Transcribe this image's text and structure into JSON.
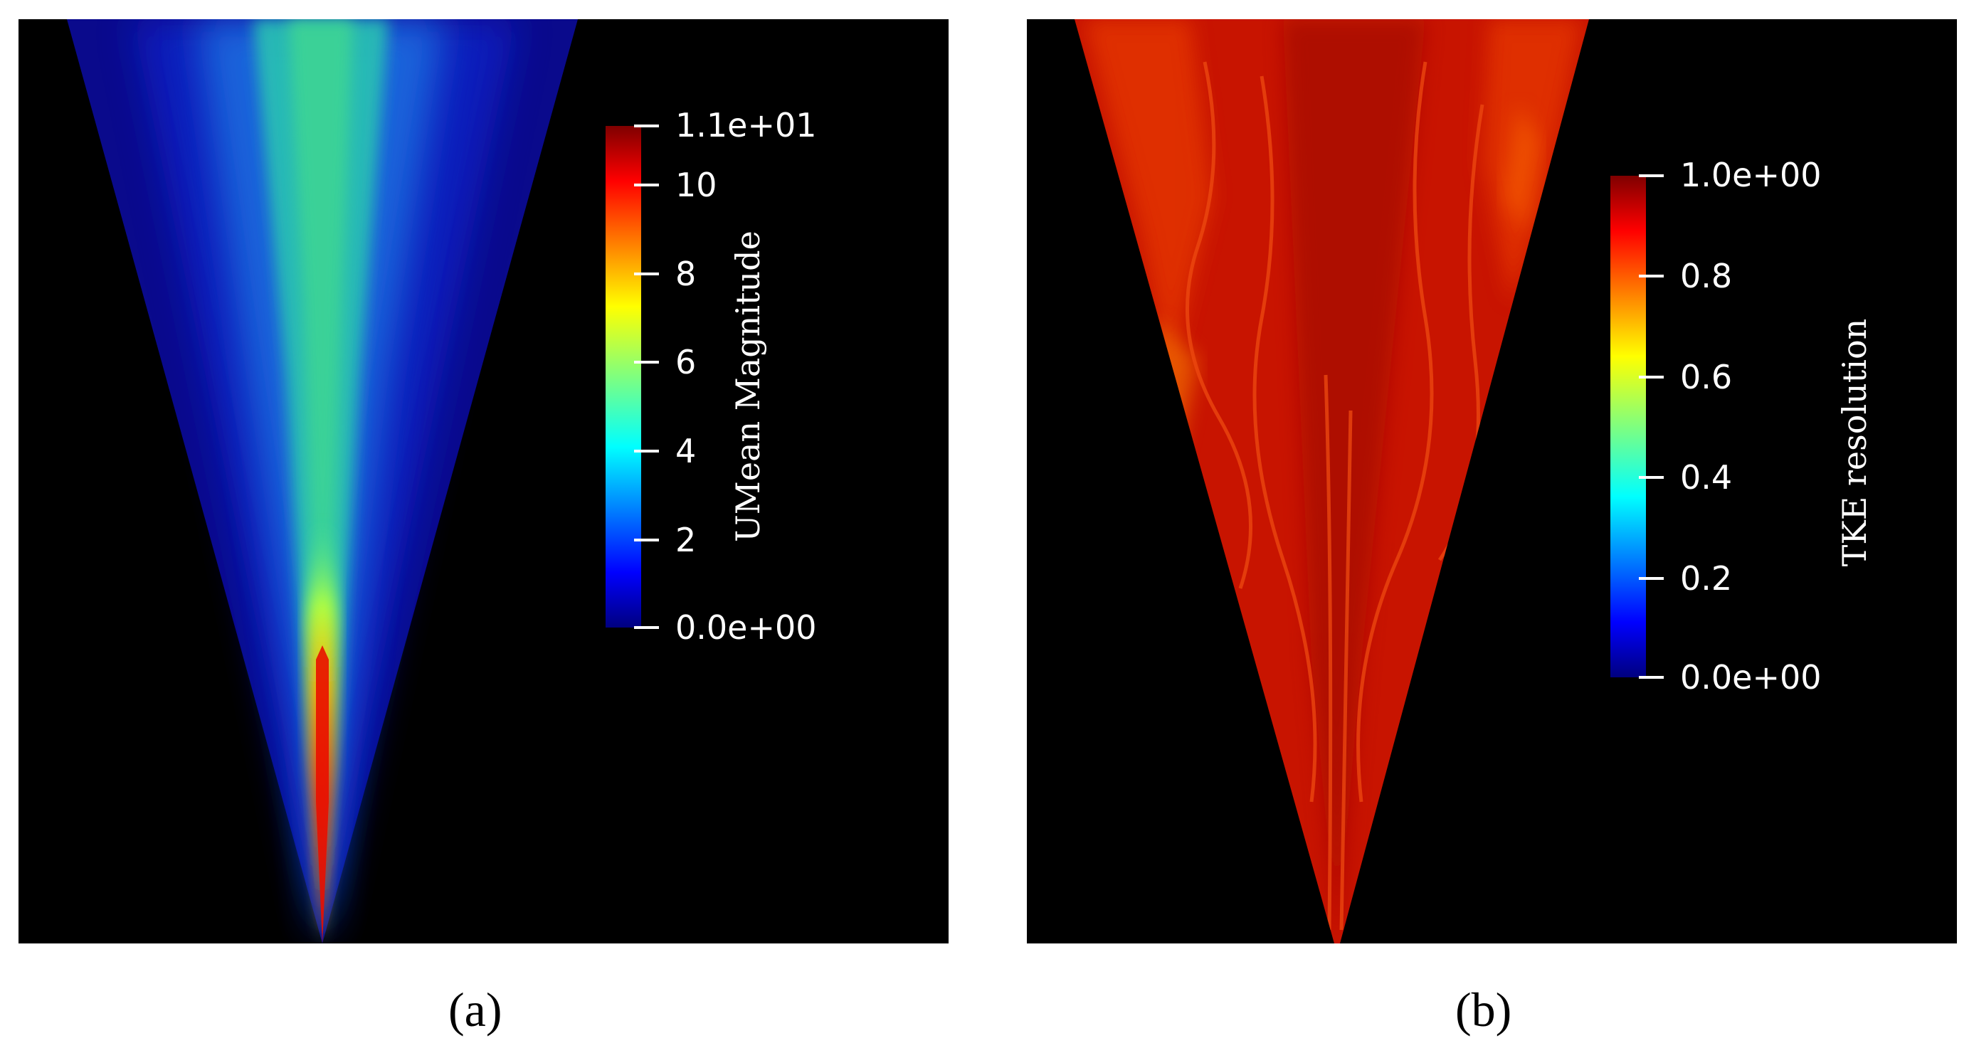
{
  "panels": [
    {
      "caption": "(a)",
      "colorbar": {
        "title": "UMean Magnitude",
        "max_label": "1.1e+01",
        "min_label": "0.0e+00",
        "ticks": [
          "10",
          "8",
          "6",
          "4",
          "2"
        ]
      }
    },
    {
      "caption": "(b)",
      "colorbar": {
        "title": "TKE resolution",
        "max_label": "1.0e+00",
        "min_label": "0.0e+00",
        "ticks": [
          "0.8",
          "0.6",
          "0.4",
          "0.2"
        ]
      }
    }
  ],
  "colors": {
    "background": "#000000",
    "jet_low": "#00007f",
    "jet_high": "#7f0000",
    "field_b": "#d21a00"
  }
}
